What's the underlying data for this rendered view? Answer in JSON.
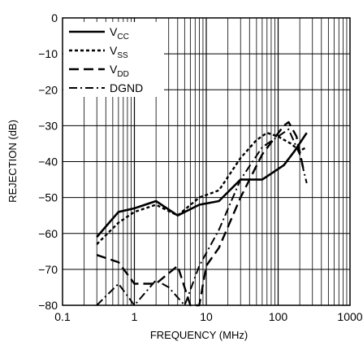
{
  "chart_data": {
    "type": "line",
    "title": "",
    "xlabel": "FREQUENCY (MHz)",
    "ylabel": "REJECTION (dB)",
    "xscale": "log",
    "xlim": [
      0.1,
      1000
    ],
    "ylim": [
      -80,
      0
    ],
    "x_ticks": [
      0.1,
      1,
      10,
      100,
      1000
    ],
    "x_tick_labels": [
      "0.1",
      "1",
      "10",
      "100",
      "1000"
    ],
    "y_ticks": [
      0,
      -10,
      -20,
      -30,
      -40,
      -50,
      -60,
      -70,
      -80
    ],
    "y_tick_labels": [
      "0",
      "−10",
      "−20",
      "−30",
      "−40",
      "−50",
      "−60",
      "−70",
      "−80"
    ],
    "grid": true,
    "legend_position": "top-left",
    "series": [
      {
        "name": "VCC",
        "legend_main": "V",
        "legend_sub": "CC",
        "style": "solid",
        "x": [
          0.3,
          0.6,
          1,
          2,
          4,
          8,
          15,
          30,
          60,
          120,
          170,
          250
        ],
        "y": [
          -61,
          -54,
          -53,
          -51,
          -55,
          -52,
          -51,
          -45,
          -45,
          -41,
          -37,
          -32
        ]
      },
      {
        "name": "VSS",
        "legend_main": "V",
        "legend_sub": "SS",
        "style": "dotted",
        "x": [
          0.3,
          0.6,
          1,
          2,
          4,
          8,
          15,
          30,
          50,
          70,
          100,
          150,
          200,
          250
        ],
        "y": [
          -63,
          -57,
          -54,
          -52,
          -55,
          -50,
          -48,
          -39,
          -34,
          -32,
          -33,
          -35,
          -37,
          -36
        ]
      },
      {
        "name": "VDD",
        "legend_main": "V",
        "legend_sub": "DD",
        "style": "dashed",
        "x": [
          0.3,
          0.6,
          1,
          2,
          4,
          6,
          8,
          10,
          15,
          30,
          60,
          120,
          140,
          180,
          230
        ],
        "y": [
          -66,
          -68,
          -74,
          -74,
          -69,
          -80,
          -80,
          -69,
          -64,
          -50,
          -38,
          -30,
          -29,
          -33,
          -43
        ]
      },
      {
        "name": "DGND",
        "legend_main": "DGND",
        "legend_sub": "",
        "style": "dashdot",
        "x": [
          0.3,
          0.6,
          1,
          2,
          3,
          5,
          8,
          15,
          30,
          60,
          100,
          140,
          200,
          250
        ],
        "y": [
          -80,
          -74,
          -80,
          -73,
          -75,
          -80,
          -69,
          -59,
          -45,
          -36,
          -33,
          -31,
          -38,
          -46
        ]
      }
    ]
  }
}
